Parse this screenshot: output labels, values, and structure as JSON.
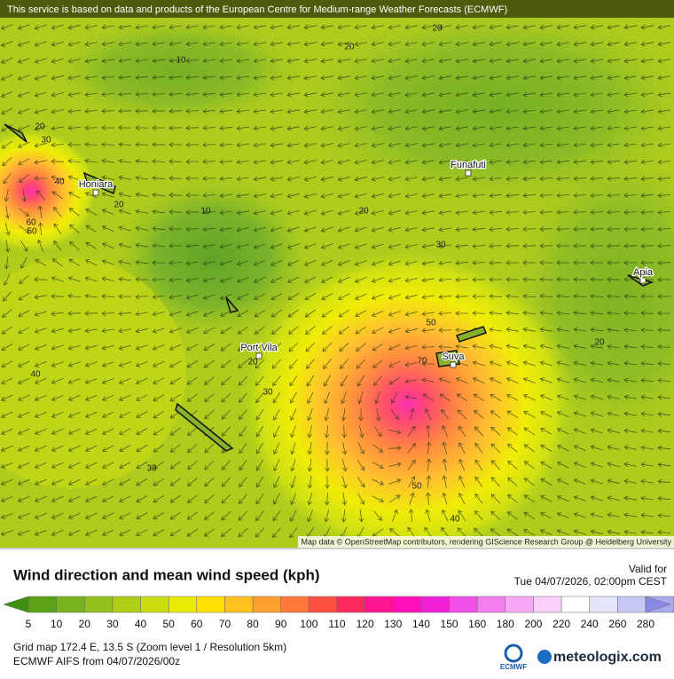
{
  "header": {
    "notice": "This service is based on data and products of the European Centre for Medium-range Weather Forecasts (ECMWF)"
  },
  "map": {
    "places": [
      "Honiara",
      "Funafuti",
      "Port Vila",
      "Suva",
      "Apia"
    ],
    "contour_labels": [
      20,
      20,
      10,
      20,
      30,
      40,
      20,
      60,
      50,
      10,
      20,
      30,
      20,
      30,
      40,
      50,
      70,
      30,
      50,
      40,
      20
    ],
    "credit": "Map data © OpenStreetMap contributors, rendering GIScience Research Group @ Heidelberg University"
  },
  "legend": {
    "title": "Wind direction and mean wind speed (kph)",
    "valid_label": "Valid for",
    "valid_time": "Tue 04/07/2026, 02:00pm CEST",
    "scale_labels": [
      5,
      10,
      20,
      30,
      40,
      50,
      60,
      70,
      80,
      90,
      100,
      110,
      120,
      130,
      140,
      150,
      160,
      180,
      200,
      220,
      240,
      260,
      280
    ],
    "scale_colors": [
      "#3f8f10",
      "#5ca218",
      "#78b21c",
      "#93c01c",
      "#aece18",
      "#cbdc12",
      "#eaea06",
      "#ffe000",
      "#ffc020",
      "#ffa030",
      "#ff7a3a",
      "#ff5040",
      "#ff2a60",
      "#ff1490",
      "#ff10b8",
      "#f020d8",
      "#f050e8",
      "#f480f0",
      "#f8a8f4",
      "#fcd0fa",
      "#ffffff",
      "#e4e4fa",
      "#c8c8f4",
      "#aaaaee",
      "#8a8ae6"
    ]
  },
  "footer": {
    "grid": "Grid map 172.4 E, 13.5 S (Zoom level 1 / Resolution 5km)",
    "model": "ECMWF AIFS from 04/07/2026/00z",
    "logo_small": "ECMWF",
    "logo_main": "meteologix.com"
  }
}
